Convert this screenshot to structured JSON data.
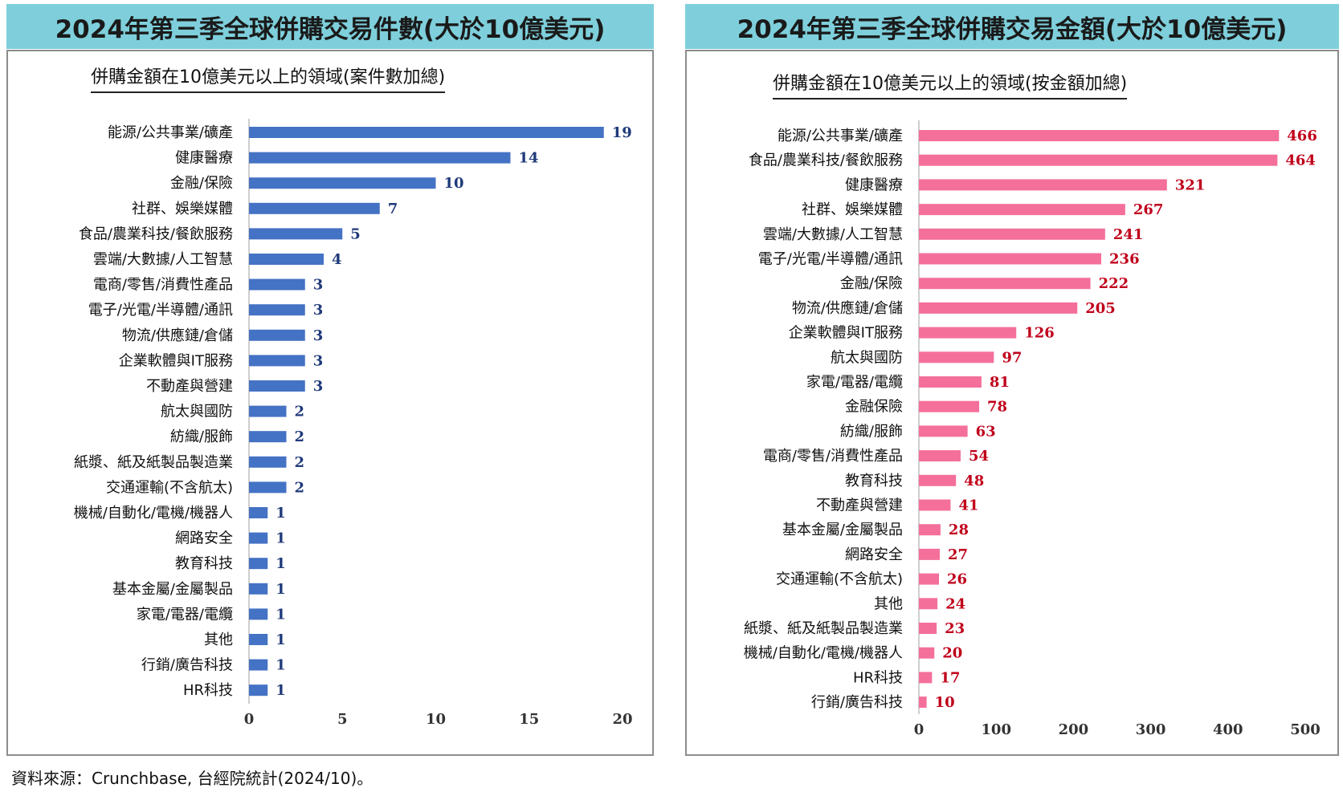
{
  "left": {
    "header": "2024年第三季全球併購交易件數(大於10億美元)",
    "subtitle": "併購金額在10億美元以上的領域(案件數加總)"
  },
  "right": {
    "header": "2024年第三季全球併購交易金額(大於10億美元)",
    "subtitle": "併購金額在10億美元以上的領域(按金額加總)"
  },
  "source": "資料來源：Crunchbase, 台經院統計(2024/10)。",
  "colors": {
    "left_bar": "#4472c4",
    "left_label": "#1f3a7a",
    "right_bar": "#f4709a",
    "right_label": "#c0001a",
    "header_bg": "#7ecfdb"
  },
  "chart_data": [
    {
      "type": "bar",
      "orientation": "horizontal",
      "title": "2024年第三季全球併購交易件數(大於10億美元)",
      "subtitle": "併購金額在10億美元以上的領域(案件數加總)",
      "categories": [
        "能源/公共事業/礦產",
        "健康醫療",
        "金融/保險",
        "社群、娛樂媒體",
        "食品/農業科技/餐飲服務",
        "雲端/大數據/人工智慧",
        "電商/零售/消費性產品",
        "電子/光電/半導體/通訊",
        "物流/供應鏈/倉儲",
        "企業軟體與IT服務",
        "不動產與營建",
        "航太與國防",
        "紡織/服飾",
        "紙漿、紙及紙製品製造業",
        "交通運輸(不含航太)",
        "機械/自動化/電機/機器人",
        "網路安全",
        "教育科技",
        "基本金屬/金屬製品",
        "家電/電器/電纜",
        "其他",
        "行銷/廣告科技",
        "HR科技"
      ],
      "values": [
        19,
        14,
        10,
        7,
        5,
        4,
        3,
        3,
        3,
        3,
        3,
        2,
        2,
        2,
        2,
        1,
        1,
        1,
        1,
        1,
        1,
        1,
        1
      ],
      "xlim": [
        0,
        20
      ],
      "xticks": [
        0,
        5,
        10,
        15,
        20
      ],
      "grid": false
    },
    {
      "type": "bar",
      "orientation": "horizontal",
      "title": "2024年第三季全球併購交易金額(大於10億美元)",
      "subtitle": "併購金額在10億美元以上的領域(按金額加總)",
      "categories": [
        "能源/公共事業/礦產",
        "食品/農業科技/餐飲服務",
        "健康醫療",
        "社群、娛樂媒體",
        "雲端/大數據/人工智慧",
        "電子/光電/半導體/通訊",
        "金融/保險",
        "物流/供應鏈/倉儲",
        "企業軟體與IT服務",
        "航太與國防",
        "家電/電器/電纜",
        "金融保險",
        "紡織/服飾",
        "電商/零售/消費性產品",
        "教育科技",
        "不動產與營建",
        "基本金屬/金屬製品",
        "網路安全",
        "交通運輸(不含航太)",
        "其他",
        "紙漿、紙及紙製品製造業",
        "機械/自動化/電機/機器人",
        "HR科技",
        "行銷/廣告科技"
      ],
      "values": [
        466,
        464,
        321,
        267,
        241,
        236,
        222,
        205,
        126,
        97,
        81,
        78,
        63,
        54,
        48,
        41,
        28,
        27,
        26,
        24,
        23,
        20,
        17,
        10
      ],
      "xlim": [
        0,
        500
      ],
      "xticks": [
        0,
        100,
        200,
        300,
        400,
        500
      ],
      "grid": false
    }
  ]
}
